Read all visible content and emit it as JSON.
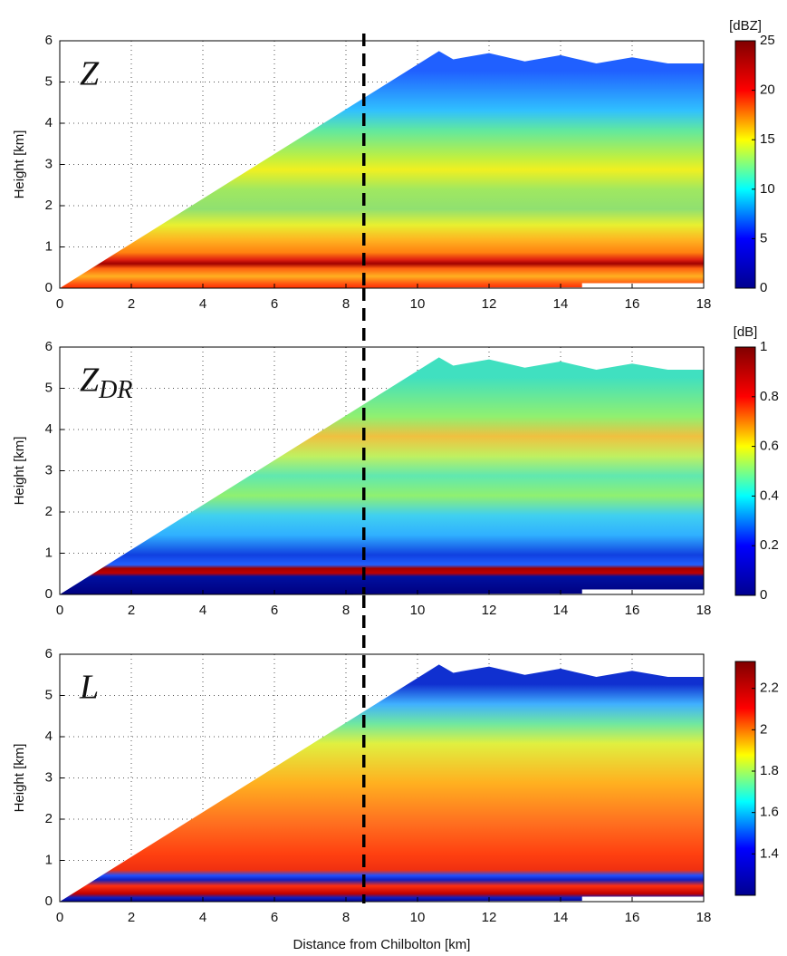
{
  "chart_data": [
    {
      "type": "heatmap",
      "label": "Z",
      "ylabel": "Height [km]",
      "xlim": [
        0,
        18
      ],
      "xticks": [
        0,
        2,
        4,
        6,
        8,
        10,
        12,
        14,
        16,
        18
      ],
      "ylim": [
        0,
        6
      ],
      "yticks": [
        0,
        1,
        2,
        3,
        4,
        5,
        6
      ],
      "grid": true,
      "vline_x": 8.5,
      "colorbar": {
        "unit": "[dBZ]",
        "lim": [
          0,
          25
        ],
        "ticks": [
          0,
          5,
          10,
          15,
          20,
          25
        ]
      },
      "colormap": [
        "#00008f",
        "#0000ff",
        "#00ffff",
        "#ffff00",
        "#ff0000",
        "#800000"
      ]
    },
    {
      "type": "heatmap",
      "label": "Z",
      "label_sub": "DR",
      "ylabel": "Height [km]",
      "xlim": [
        0,
        18
      ],
      "xticks": [
        0,
        2,
        4,
        6,
        8,
        10,
        12,
        14,
        16,
        18
      ],
      "ylim": [
        0,
        6
      ],
      "yticks": [
        0,
        1,
        2,
        3,
        4,
        5,
        6
      ],
      "grid": true,
      "vline_x": 8.5,
      "colorbar": {
        "unit": "[dB]",
        "lim": [
          0,
          1
        ],
        "ticks": [
          0,
          0.2,
          0.4,
          0.6,
          0.8,
          1
        ]
      },
      "colormap": [
        "#00008f",
        "#0000ff",
        "#00ffff",
        "#ffff00",
        "#ff0000",
        "#800000"
      ]
    },
    {
      "type": "heatmap",
      "label": "L",
      "ylabel": "Height [km]",
      "xlabel": "Distance from Chilbolton [km]",
      "xlim": [
        0,
        18
      ],
      "xticks": [
        0,
        2,
        4,
        6,
        8,
        10,
        12,
        14,
        16,
        18
      ],
      "ylim": [
        0,
        6
      ],
      "yticks": [
        0,
        1,
        2,
        3,
        4,
        5,
        6
      ],
      "grid": true,
      "vline_x": 8.5,
      "colorbar": {
        "lim": [
          1.2,
          2.33
        ],
        "ticks": [
          1.4,
          1.6,
          1.8,
          2,
          2.2
        ]
      },
      "colormap": [
        "#00008f",
        "#0000ff",
        "#00ffff",
        "#ffff00",
        "#ff0000",
        "#800000"
      ]
    }
  ]
}
